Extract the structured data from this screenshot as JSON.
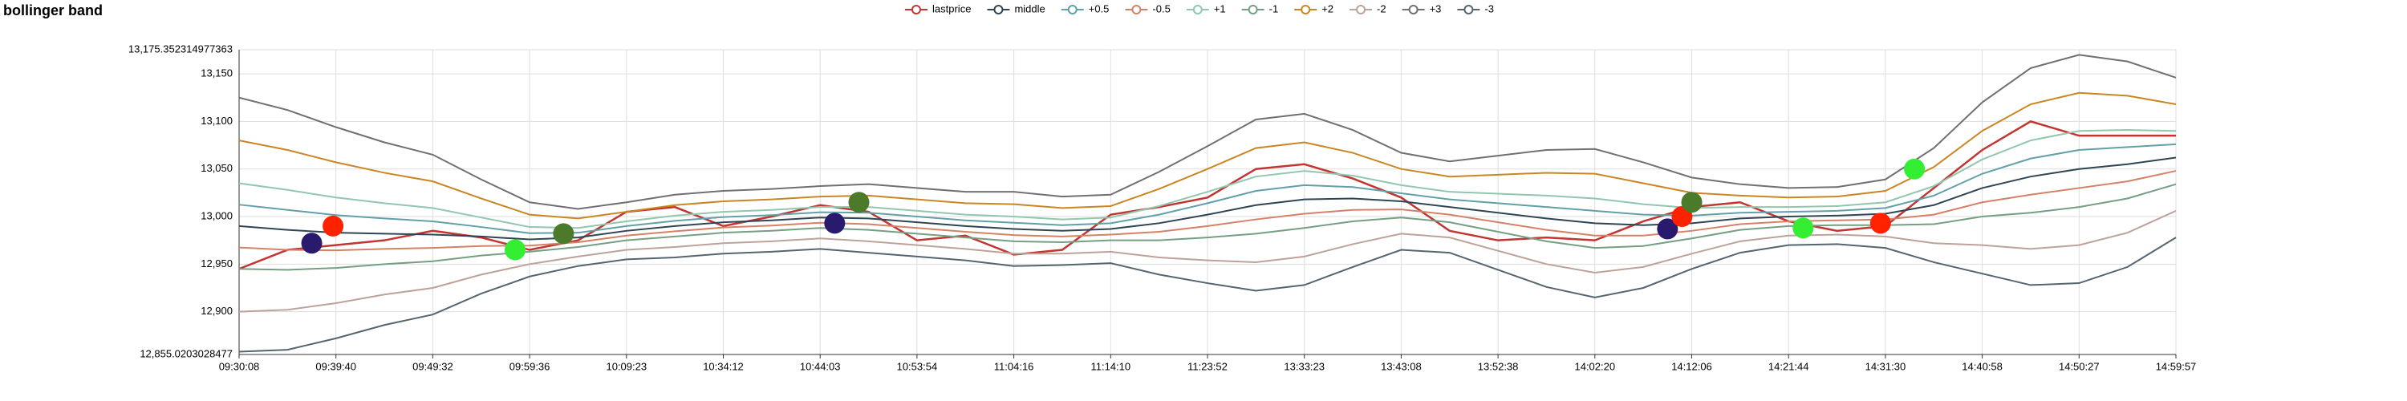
{
  "chart_data": {
    "type": "line",
    "title": "bollinger band",
    "categories": [
      "09:30:08",
      null,
      "09:39:40",
      null,
      "09:49:32",
      null,
      "09:59:36",
      null,
      "10:09:23",
      null,
      "10:34:12",
      null,
      "10:44:03",
      null,
      "10:53:54",
      null,
      "11:04:16",
      null,
      "11:14:10",
      null,
      "11:23:52",
      null,
      "13:33:23",
      null,
      "13:43:08",
      null,
      "13:52:38",
      null,
      "14:02:20",
      null,
      "14:12:06",
      null,
      "14:21:44",
      null,
      "14:31:30",
      null,
      "14:40:58",
      null,
      "14:50:27",
      null,
      "14:59:57"
    ],
    "ylim": [
      12855.0203028477,
      13175.352314977363
    ],
    "yticks": [
      {
        "value": 12855.0203028477,
        "label": "12,855.0203028477"
      },
      {
        "value": 12900,
        "label": "12,900"
      },
      {
        "value": 12950,
        "label": "12,950"
      },
      {
        "value": 13000,
        "label": "13,000"
      },
      {
        "value": 13050,
        "label": "13,050"
      },
      {
        "value": 13100,
        "label": "13,100"
      },
      {
        "value": 13150,
        "label": "13,150"
      },
      {
        "value": 13175.352314977363,
        "label": "13,175.352314977363"
      }
    ],
    "grid": true,
    "series": [
      {
        "name": "lastprice",
        "color": "#c23531",
        "values": [
          12945,
          12965,
          12970,
          12975,
          12985,
          12978,
          12965,
          12975,
          13005,
          13010,
          12990,
          13000,
          13012,
          13005,
          12975,
          12980,
          12960,
          12965,
          13002,
          13010,
          13020,
          13050,
          13055,
          13040,
          13020,
          12985,
          12975,
          12978,
          12975,
          12995,
          13010,
          13015,
          12995,
          12985,
          12990,
          13030,
          13070,
          13100,
          13085,
          13085,
          13085
        ]
      },
      {
        "name": "middle",
        "color": "#2f4554",
        "values": [
          12990,
          12986,
          12983,
          12982,
          12981,
          12979,
          12976,
          12978,
          12985,
          12990,
          12994,
          12996,
          12999,
          12998,
          12994,
          12990,
          12987,
          12985,
          12987,
          12993,
          13002,
          13012,
          13018,
          13019,
          13016,
          13010,
          13004,
          12998,
          12993,
          12991,
          12993,
          12998,
          13000,
          13001,
          13003,
          13012,
          13030,
          13042,
          13050,
          13055,
          13062
        ]
      },
      {
        "name": "+0.5",
        "color": "#61a0a8",
        "values": [
          13012.5,
          13007,
          13001.5,
          12998,
          12995,
          12989,
          12982.5,
          12983,
          12990,
          12995.5,
          12999.5,
          13001.5,
          13004.5,
          13004,
          13000,
          12996,
          12993.5,
          12991,
          12993,
          13002,
          13014,
          13027,
          13033,
          13031,
          13024.5,
          13018,
          13014,
          13010,
          13006,
          13002,
          13001,
          13004,
          13005,
          13006,
          13009,
          13022,
          13045,
          13061,
          13070,
          13073,
          13076
        ]
      },
      {
        "name": "-0.5",
        "color": "#d48265",
        "values": [
          12967.5,
          12965,
          12964.5,
          12966,
          12967,
          12969,
          12969.5,
          12973,
          12980,
          12984.5,
          12988.5,
          12990.5,
          12993.5,
          12992,
          12988,
          12984,
          12980.5,
          12979,
          12981,
          12984,
          12990,
          12997,
          13003,
          13007,
          13007.5,
          13002,
          12994,
          12986,
          12980,
          12980,
          12985,
          12992,
          12995,
          12996,
          12997,
          13002,
          13015,
          13023,
          13030,
          13037,
          13048
        ]
      },
      {
        "name": "+1",
        "color": "#91c7ae",
        "values": [
          13035,
          13028,
          13020,
          13014,
          13009,
          12999,
          12989,
          12988,
          12995,
          13001,
          13005,
          13007,
          13010,
          13010,
          13006,
          13002,
          13000,
          12997,
          12999,
          13011,
          13026,
          13042,
          13048,
          13043,
          13033,
          13026,
          13024,
          13022,
          13019,
          13013,
          13009,
          13010,
          13010,
          13011,
          13015,
          13032,
          13060,
          13080,
          13090,
          13091,
          13090
        ]
      },
      {
        "name": "-1",
        "color": "#749f83",
        "values": [
          12945,
          12944,
          12946,
          12950,
          12953,
          12959,
          12963,
          12968,
          12975,
          12979,
          12983,
          12985,
          12988,
          12986,
          12982,
          12978,
          12974,
          12973,
          12975,
          12975,
          12978,
          12982,
          12988,
          12995,
          12999,
          12994,
          12984,
          12974,
          12967,
          12969,
          12977,
          12986,
          12990,
          12991,
          12991,
          12992,
          13000,
          13004,
          13010,
          13019,
          13034
        ]
      },
      {
        "name": "+2",
        "color": "#ca8622",
        "values": [
          13080,
          13070,
          13057,
          13046,
          13037,
          13019,
          13002,
          12998,
          13005,
          13012,
          13016,
          13018,
          13021,
          13022,
          13018,
          13014,
          13013,
          13009,
          13011,
          13029,
          13050,
          13072,
          13078,
          13067,
          13050,
          13042,
          13044,
          13046,
          13045,
          13035,
          13025,
          13022,
          13020,
          13021,
          13027,
          13052,
          13090,
          13118,
          13130,
          13127,
          13118
        ]
      },
      {
        "name": "-2",
        "color": "#bda29a",
        "values": [
          12900,
          12902,
          12909,
          12918,
          12925,
          12939,
          12950,
          12958,
          12965,
          12968,
          12972,
          12974,
          12977,
          12974,
          12970,
          12966,
          12961,
          12961,
          12963,
          12957,
          12954,
          12952,
          12958,
          12971,
          12982,
          12978,
          12964,
          12950,
          12941,
          12947,
          12961,
          12974,
          12980,
          12981,
          12979,
          12972,
          12970,
          12966,
          12970,
          12983,
          13006
        ]
      },
      {
        "name": "+3",
        "color": "#6e7074",
        "values": [
          13125,
          13112,
          13094,
          13078,
          13065,
          13039,
          13015,
          13008,
          13015,
          13023,
          13027,
          13029,
          13032,
          13034,
          13030,
          13026,
          13026,
          13021,
          13023,
          13047,
          13074,
          13102,
          13108,
          13091,
          13067,
          13058,
          13064,
          13070,
          13071,
          13057,
          13041,
          13034,
          13030,
          13031,
          13039,
          13072,
          13120,
          13156,
          13170,
          13163,
          13146
        ]
      },
      {
        "name": "-3",
        "color": "#546570",
        "values": [
          12858,
          12860,
          12872,
          12886,
          12897,
          12919,
          12937,
          12948,
          12955,
          12957,
          12961,
          12963,
          12966,
          12962,
          12958,
          12954,
          12948,
          12949,
          12951,
          12939,
          12930,
          12922,
          12928,
          12947,
          12965,
          12962,
          12944,
          12926,
          12915,
          12925,
          12945,
          12962,
          12970,
          12971,
          12967,
          12952,
          12940,
          12928,
          12930,
          12947,
          12978
        ]
      }
    ],
    "signals": {
      "x": [
        1.5,
        1.94,
        5.7,
        6.7,
        12.3,
        12.8,
        29.5,
        29.8,
        30.0,
        32.3,
        33.9,
        34.6
      ],
      "y": [
        12972,
        12990,
        12965,
        12982,
        12993,
        13015,
        12987,
        13000,
        13015,
        12988,
        12993,
        13050
      ],
      "colors": [
        "#2a1a6e",
        "#ff2200",
        "#33ee33",
        "#4a7a2a",
        "#2a1a6e",
        "#4a7a2a",
        "#2a1a6e",
        "#ff2200",
        "#4a7a2a",
        "#33ee33",
        "#ff2200",
        "#33ee33"
      ]
    }
  }
}
